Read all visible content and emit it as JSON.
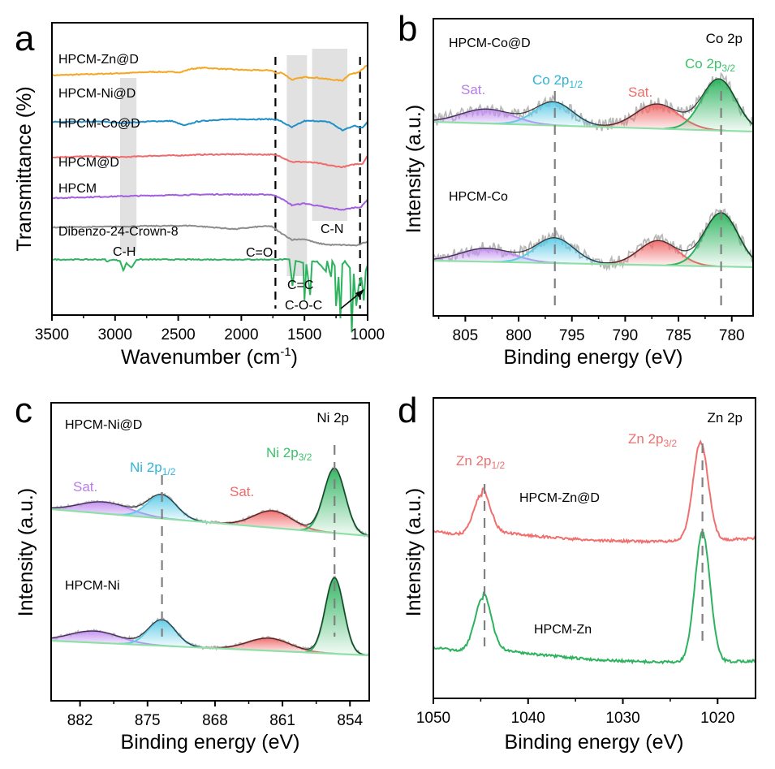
{
  "chart_data": [
    {
      "panel": "a",
      "type": "line",
      "xlabel": "Wavenumber (cm-1)",
      "xlabel_main": "Wavenumber (cm",
      "xlabel_sup": "-1",
      "xlabel_end": ")",
      "ylabel": "Transmittance (%)",
      "xlim": [
        3500,
        1000
      ],
      "x_ticks": [
        3500,
        3000,
        2500,
        2000,
        1500,
        1000
      ],
      "y_ticks_shown": false,
      "series": [
        {
          "name": "HPCM-Zn@D",
          "color": "#f5a623",
          "offset": 0.82,
          "points": [
            [
              3500,
              0
            ],
            [
              3200,
              0.4
            ],
            [
              2900,
              0.8
            ],
            [
              2700,
              1.2
            ],
            [
              2480,
              1.1
            ],
            [
              2400,
              2.2
            ],
            [
              2300,
              2.6
            ],
            [
              2150,
              2.2
            ],
            [
              1950,
              1.8
            ],
            [
              1760,
              1.7
            ],
            [
              1720,
              0.6
            ],
            [
              1680,
              1.0
            ],
            [
              1600,
              -1.5
            ],
            [
              1500,
              -0.6
            ],
            [
              1400,
              -0.8
            ],
            [
              1300,
              -1.4
            ],
            [
              1200,
              -1.8
            ],
            [
              1150,
              0.2
            ],
            [
              1080,
              1.0
            ],
            [
              1000,
              3.5
            ]
          ]
        },
        {
          "name": "HPCM-Ni@D",
          "color": "#1f8fc8",
          "offset": 0.66,
          "points": [
            [
              3500,
              0
            ],
            [
              3100,
              0.2
            ],
            [
              2950,
              -0.3
            ],
            [
              2700,
              0.3
            ],
            [
              2550,
              0.4
            ],
            [
              2450,
              -1.2
            ],
            [
              2350,
              0.2
            ],
            [
              2200,
              0.8
            ],
            [
              2000,
              1.0
            ],
            [
              1750,
              1.0
            ],
            [
              1700,
              0.6
            ],
            [
              1600,
              -1.8
            ],
            [
              1500,
              0.4
            ],
            [
              1400,
              0.4
            ],
            [
              1300,
              0
            ],
            [
              1200,
              -2.8
            ],
            [
              1100,
              -1.2
            ],
            [
              1040,
              -2.0
            ],
            [
              1000,
              0.2
            ]
          ]
        },
        {
          "name": "HPCM-Co@D",
          "color": "#f06a6a",
          "offset": 0.54,
          "points": [
            [
              3500,
              0
            ],
            [
              3200,
              0.3
            ],
            [
              2950,
              0
            ],
            [
              2700,
              0.5
            ],
            [
              2500,
              0.6
            ],
            [
              2300,
              0.9
            ],
            [
              2000,
              1.0
            ],
            [
              1760,
              0.9
            ],
            [
              1700,
              0.4
            ],
            [
              1600,
              -1.6
            ],
            [
              1500,
              -1.6
            ],
            [
              1400,
              -2.0
            ],
            [
              1300,
              -2.8
            ],
            [
              1200,
              -3.4
            ],
            [
              1100,
              -2.4
            ],
            [
              1040,
              -2.2
            ],
            [
              1000,
              0.6
            ]
          ]
        },
        {
          "name": "HPCM@D",
          "color": "#a35ee0",
          "offset": 0.4,
          "points": [
            [
              3500,
              0
            ],
            [
              3000,
              0.6
            ],
            [
              2600,
              1.0
            ],
            [
              2200,
              1.3
            ],
            [
              1760,
              1.2
            ],
            [
              1700,
              0.3
            ],
            [
              1600,
              -2.4
            ],
            [
              1500,
              -1.8
            ],
            [
              1400,
              -2.6
            ],
            [
              1300,
              -3.4
            ],
            [
              1200,
              -4.0
            ],
            [
              1100,
              -3.2
            ],
            [
              1050,
              -3.0
            ],
            [
              1000,
              -0.4
            ]
          ]
        },
        {
          "name": "HPCM",
          "color": "#8c8c8c",
          "offset": 0.3,
          "points": [
            [
              3500,
              0
            ],
            [
              3100,
              0.2
            ],
            [
              2800,
              0.4
            ],
            [
              2400,
              0.6
            ],
            [
              2050,
              -0.6
            ],
            [
              1850,
              0.3
            ],
            [
              1760,
              0.4
            ],
            [
              1700,
              -1.6
            ],
            [
              1600,
              -4.2
            ],
            [
              1500,
              -4.0
            ],
            [
              1400,
              -5.4
            ],
            [
              1300,
              -6.0
            ],
            [
              1200,
              -6.0
            ],
            [
              1080,
              -6.2
            ],
            [
              1000,
              -4.8
            ]
          ]
        },
        {
          "name": "Dibenzo-24-Crown-8",
          "color": "#2db35e",
          "offset": 0.19,
          "points": [
            [
              3500,
              0
            ],
            [
              3080,
              0
            ],
            [
              3060,
              -0.8
            ],
            [
              3030,
              0
            ],
            [
              2960,
              -0.4
            ],
            [
              2935,
              -3.8
            ],
            [
              2910,
              -1.2
            ],
            [
              2870,
              -2.8
            ],
            [
              2830,
              0
            ],
            [
              2000,
              0
            ],
            [
              1760,
              0
            ],
            [
              1620,
              0
            ],
            [
              1595,
              -9.0
            ],
            [
              1570,
              -0.4
            ],
            [
              1510,
              -1.0
            ],
            [
              1500,
              -14.0
            ],
            [
              1485,
              -1.6
            ],
            [
              1455,
              -12.0
            ],
            [
              1440,
              -0.8
            ],
            [
              1400,
              -0.6
            ],
            [
              1330,
              -4.0
            ],
            [
              1320,
              -0.6
            ],
            [
              1290,
              -6.0
            ],
            [
              1280,
              -0.6
            ],
            [
              1260,
              -2.0
            ],
            [
              1250,
              -16.0
            ],
            [
              1230,
              -6.0
            ],
            [
              1215,
              -20.0
            ],
            [
              1200,
              -1.6
            ],
            [
              1180,
              -0.6
            ],
            [
              1140,
              -3.0
            ],
            [
              1125,
              -25.0
            ],
            [
              1110,
              -5.0
            ],
            [
              1090,
              -16.0
            ],
            [
              1070,
              -9.0
            ],
            [
              1050,
              -6.0
            ],
            [
              1030,
              -14.0
            ],
            [
              1015,
              -4.0
            ],
            [
              1000,
              -2.0
            ]
          ]
        }
      ],
      "shaded_bands": [
        {
          "from": 2960,
          "to": 2830,
          "label": "C-H"
        },
        {
          "from": 1640,
          "to": 1480,
          "label": "C=C"
        },
        {
          "from": 1440,
          "to": 1160,
          "label": "C-N"
        }
      ],
      "dashed_lines": [
        {
          "x": 1730,
          "label": "C=O"
        },
        {
          "x": 1060,
          "label": "C-O-C"
        }
      ],
      "annotations": [
        "C-H",
        "C=O",
        "C=C",
        "C-N",
        "C-O-C"
      ]
    },
    {
      "panel": "b",
      "type": "line",
      "title": "Co 2p",
      "xlabel": "Binding energy (eV)",
      "ylabel": "Intensity (a.u.)",
      "xlim": [
        808,
        778
      ],
      "x_ticks": [
        805,
        800,
        795,
        790,
        785,
        780
      ],
      "samples": [
        {
          "name": "HPCM-Co@D",
          "level": "upper",
          "peaks": [
            {
              "label": "Sat.",
              "center": 803.0,
              "height": 0.32,
              "width": 2.4,
              "color": "#c28ff0"
            },
            {
              "label": "Co 2p1/2",
              "center": 796.7,
              "height": 0.52,
              "width": 1.8,
              "color": "#5fcbe6"
            },
            {
              "label": "Sat.",
              "center": 787.0,
              "height": 0.55,
              "width": 2.0,
              "color": "#f06a6a"
            },
            {
              "label": "Co 2p3/2",
              "center": 781.2,
              "height": 1.15,
              "width": 1.6,
              "color": "#2db35e"
            }
          ]
        },
        {
          "name": "HPCM-Co",
          "level": "lower",
          "peaks": [
            {
              "label": "Sat.",
              "center": 803.0,
              "height": 0.3,
              "width": 2.4,
              "color": "#c28ff0"
            },
            {
              "label": "Co 2p1/2",
              "center": 796.6,
              "height": 0.56,
              "width": 1.8,
              "color": "#5fcbe6"
            },
            {
              "label": "Sat.",
              "center": 786.9,
              "height": 0.55,
              "width": 1.8,
              "color": "#f06a6a"
            },
            {
              "label": "Co 2p3/2",
              "center": 781.0,
              "height": 1.2,
              "width": 1.6,
              "color": "#2db35e"
            }
          ]
        }
      ],
      "dashed_lines": [
        796.6,
        781.0
      ],
      "peak_labels": [
        {
          "main": "Sat.",
          "sub": "",
          "color": "#b77ee8"
        },
        {
          "main": "Co 2p",
          "sub": "1/2",
          "color": "#2fb4dc"
        },
        {
          "main": "Sat.",
          "sub": "",
          "color": "#f06a6a"
        },
        {
          "main": "Co 2p",
          "sub": "3/2",
          "color": "#3cc36a"
        }
      ]
    },
    {
      "panel": "c",
      "type": "line",
      "title": "Ni 2p",
      "xlabel": "Binding energy (eV)",
      "ylabel": "Intensity (a.u.)",
      "xlim": [
        885,
        852
      ],
      "x_ticks": [
        882,
        875,
        868,
        861,
        854
      ],
      "samples": [
        {
          "name": "HPCM-Ni@D",
          "level": "upper",
          "peaks": [
            {
              "label": "Sat.",
              "center": 879.5,
              "height": 0.26,
              "width": 2.6,
              "color": "#c28ff0"
            },
            {
              "label": "Ni 2p1/2",
              "center": 873.5,
              "height": 0.52,
              "width": 1.5,
              "color": "#5fcbe6"
            },
            {
              "label": "Sat.",
              "center": 862.0,
              "height": 0.38,
              "width": 2.0,
              "color": "#f06a6a"
            },
            {
              "label": "Ni 2p3/2",
              "center": 855.6,
              "height": 1.45,
              "width": 1.1,
              "color": "#2db35e"
            }
          ]
        },
        {
          "name": "HPCM-Ni",
          "level": "lower",
          "peaks": [
            {
              "label": "Sat.",
              "center": 880.5,
              "height": 0.26,
              "width": 2.6,
              "color": "#c28ff0"
            },
            {
              "label": "Ni 2p1/2",
              "center": 873.5,
              "height": 0.58,
              "width": 1.4,
              "color": "#5fcbe6"
            },
            {
              "label": "Sat.",
              "center": 862.4,
              "height": 0.28,
              "width": 2.2,
              "color": "#f06a6a"
            },
            {
              "label": "Ni 2p3/2",
              "center": 855.6,
              "height": 1.7,
              "width": 0.95,
              "color": "#2db35e"
            }
          ]
        }
      ],
      "dashed_lines": [
        873.5,
        855.6
      ],
      "peak_labels": [
        {
          "main": "Sat.",
          "sub": "",
          "color": "#b77ee8"
        },
        {
          "main": "Ni 2p",
          "sub": "1/2",
          "color": "#2fb4dc"
        },
        {
          "main": "Sat.",
          "sub": "",
          "color": "#f06a6a"
        },
        {
          "main": "Ni 2p",
          "sub": "3/2",
          "color": "#3cc36a"
        }
      ]
    },
    {
      "panel": "d",
      "type": "line",
      "title": "Zn 2p",
      "xlabel": "Binding energy (eV)",
      "ylabel": "Intensity (a.u.)",
      "xlim": [
        1050,
        1016
      ],
      "x_ticks": [
        1050,
        1040,
        1030,
        1020
      ],
      "samples": [
        {
          "name": "HPCM-Zn@D",
          "color": "#f07070",
          "level": "upper",
          "peaks": [
            {
              "center": 1044.9,
              "height": 0.95,
              "width": 0.85
            },
            {
              "center": 1021.8,
              "height": 2.2,
              "width": 0.8
            }
          ]
        },
        {
          "name": "HPCM-Zn",
          "color": "#2db35e",
          "level": "lower",
          "peaks": [
            {
              "center": 1044.8,
              "height": 1.25,
              "width": 0.85
            },
            {
              "center": 1021.6,
              "height": 2.9,
              "width": 0.8
            }
          ]
        }
      ],
      "dashed_lines": [
        1044.6,
        1021.6
      ],
      "peak_labels": [
        {
          "main": "Zn 2p",
          "sub": "1/2",
          "color": "#f07070"
        },
        {
          "main": "Zn 2p",
          "sub": "3/2",
          "color": "#f07070"
        }
      ]
    }
  ],
  "panel_letters": [
    "a",
    "b",
    "c",
    "d"
  ]
}
